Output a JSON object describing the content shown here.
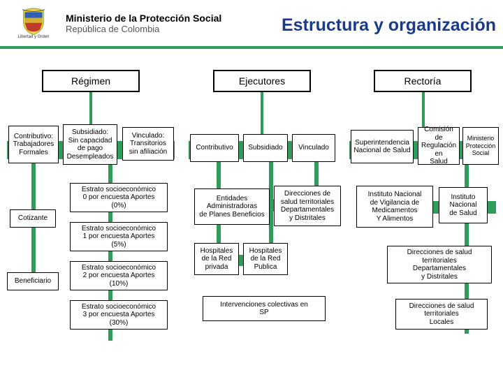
{
  "colors": {
    "accent": "#2e9c5a",
    "band": "#2e9c5a",
    "text_title": "#1a3b8c",
    "header_border": "#2e9c5a"
  },
  "header": {
    "ministry": "Ministerio de la Protección Social",
    "republic": "República de Colombia",
    "motto": "Libertad y Orden",
    "title": "Estructura y organización"
  },
  "section_headers": {
    "regimen": "Régimen",
    "ejecutores": "Ejecutores",
    "rectoria": "Rectoría"
  },
  "regimen": {
    "contributivo": "Contributivo:\nTrabajadores\nFormales",
    "subsidiado": "Subsidiado:\nSin capacidad\nde pago\nDesempleados",
    "vinculado": "Vinculado:\nTransitorios\nsin afiliación",
    "cotizante": "Cotizante",
    "beneficiario": "Beneficiario",
    "estrato0": "Estrato socioeconómico\n0 por encuesta Aportes\n(0%)",
    "estrato1": "Estrato socioeconómico\n1 por encuesta Aportes\n(5%)",
    "estrato2": "Estrato socioeconómico\n2 por encuesta Aportes\n(10%)",
    "estrato3": "Estrato socioeconómico\n3 por encuesta Aportes\n(30%)"
  },
  "ejecutores": {
    "contributivo": "Contributivo",
    "subsidiado": "Subsidiado",
    "vinculado": "Vinculado",
    "entidades": "Entidades\nAdministradoras\nde Planes Beneficios",
    "direcciones": "Direcciones de\nsalud territoriales\nDepartamentales\ny Distritales",
    "hosp_priv": "Hospitales\nde la Red\nprivada",
    "hosp_pub": "Hospitales\nde la Red\nPublica",
    "intervenciones": "Intervenciones colectivas en\nSP"
  },
  "rectoria": {
    "super": "Superintendencia\nNacional de Salud",
    "comision": "Comisión de\nRegulación en\nSalud",
    "ministerio": "Ministerio\nProtección\nSocial",
    "instituto_vig": "Instituto Nacional\nde Vigilancia de\nMedicamentos\nY Alimentos",
    "instituto_nac": "Instituto\nNacional\nde Salud",
    "dir_dept": "Direcciones de salud\nterritoriales\nDepartamentales\ny Distritales",
    "dir_loc": "Direcciones de salud\nterritoriales\nLocales"
  }
}
